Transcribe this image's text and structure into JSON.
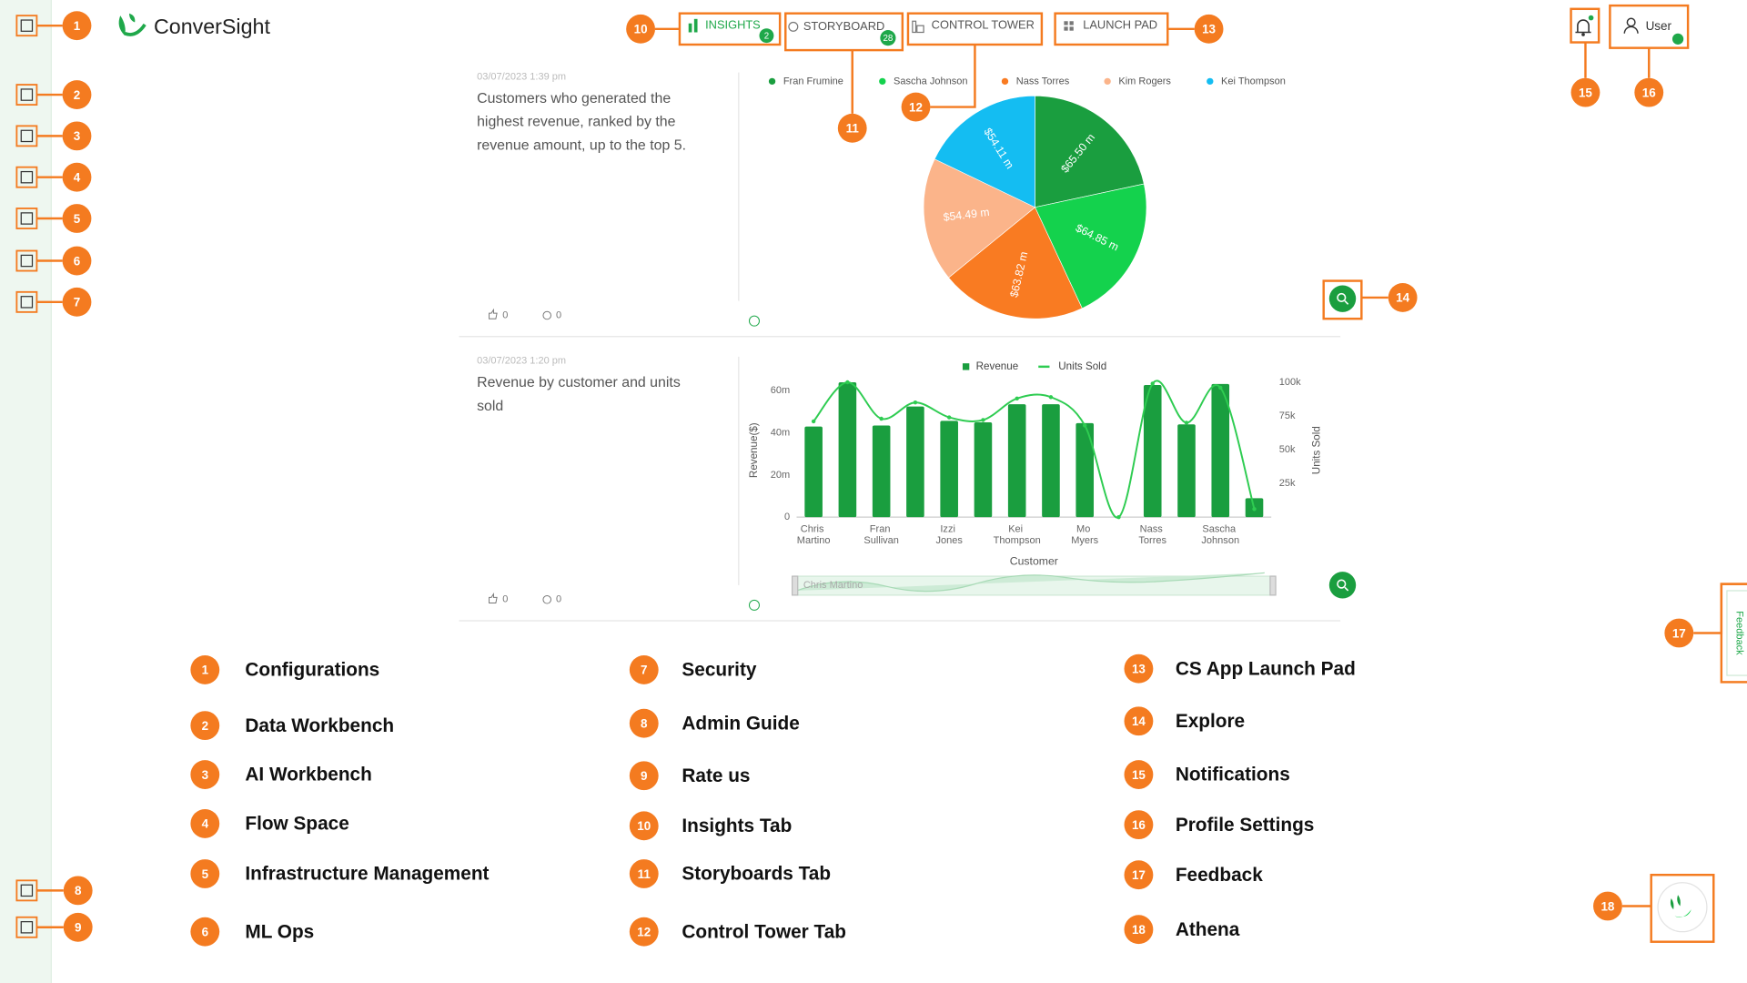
{
  "header": {
    "logo": "ConverSight",
    "tabs": [
      {
        "label": "INSIGHTS",
        "badge": 2
      },
      {
        "label": "STORYBOARD",
        "badge": 28
      },
      {
        "label": "CONTROL TOWER"
      },
      {
        "label": "LAUNCH PAD"
      }
    ],
    "user": "User"
  },
  "feedback": "Feedback",
  "cards": [
    {
      "timestamp": "03/07/2023 1:39 pm",
      "text": "Customers who generated the highest revenue, ranked by the revenue amount, up to the top 5.",
      "likes": 0,
      "comments": 0
    },
    {
      "timestamp": "03/07/2023 1:20 pm",
      "text": "Revenue by customer and units sold",
      "likes": 0,
      "comments": 0
    }
  ],
  "chart_data": [
    {
      "type": "pie",
      "categories": [
        "Fran Frumine",
        "Sascha Johnson",
        "Nass Torres",
        "Kim Rogers",
        "Kei Thompson"
      ],
      "values": [
        65.5,
        64.85,
        63.82,
        54.49,
        54.11
      ],
      "value_labels": [
        "$65.50 m",
        "$64.85 m",
        "$63.82 m",
        "$54.49 m",
        "$54.11 m"
      ],
      "colors": [
        "#1a9e3f",
        "#14d24d",
        "#f97b22",
        "#fbb48a",
        "#14bdf2"
      ]
    },
    {
      "type": "combo",
      "x_label": "Customer",
      "y_label": "Revenue($)",
      "y2_label": "Units Sold",
      "categories": [
        "Chris Martino",
        null,
        "Fran Sullivan",
        null,
        "Izzi Jones",
        null,
        "Kei Thompson",
        null,
        "Mo Myers",
        null,
        "Nass Torres",
        null,
        "Sascha Johnson",
        null
      ],
      "series": [
        {
          "name": "Revenue",
          "type": "bar",
          "color": "#1a9e3f",
          "values": [
            43,
            64,
            43.5,
            52.5,
            45.7,
            45,
            53.6,
            53.6,
            44.6,
            0,
            62.7,
            44,
            63.2,
            9
          ]
        },
        {
          "name": "Units Sold",
          "type": "line",
          "axis": "y2",
          "color": "#2ecc51",
          "values": [
            71000,
            100000,
            73000,
            85000,
            74000,
            72000,
            88000,
            89000,
            68000,
            0,
            99000,
            70000,
            96000,
            6000
          ]
        }
      ],
      "ylim": [
        0,
        64
      ],
      "yticks": [
        0,
        {
          "value": 20,
          "label": "20m"
        },
        {
          "value": 40,
          "label": "40m"
        },
        {
          "value": 60,
          "label": "60m"
        }
      ],
      "y2lim": [
        0,
        100000
      ],
      "y2ticks": [
        {
          "value": 25000,
          "label": "25k"
        },
        {
          "value": 50000,
          "label": "50k"
        },
        {
          "value": 75000,
          "label": "75k"
        },
        {
          "value": 100000,
          "label": "100k"
        }
      ]
    }
  ],
  "callouts": [
    {
      "number": 1,
      "label": "Configurations"
    },
    {
      "number": 2,
      "label": "Data Workbench"
    },
    {
      "number": 3,
      "label": "AI Workbench"
    },
    {
      "number": 4,
      "label": "Flow Space"
    },
    {
      "number": 5,
      "label": "Infrastructure Management"
    },
    {
      "number": 6,
      "label": "ML Ops"
    },
    {
      "number": 7,
      "label": "Security"
    },
    {
      "number": 8,
      "label": "Admin Guide"
    },
    {
      "number": 9,
      "label": "Rate us"
    },
    {
      "number": 10,
      "label": "Insights Tab"
    },
    {
      "number": 11,
      "label": "Storyboards Tab"
    },
    {
      "number": 12,
      "label": "Control Tower Tab"
    },
    {
      "number": 13,
      "label": "CS App Launch Pad"
    },
    {
      "number": 14,
      "label": "Explore"
    },
    {
      "number": 15,
      "label": "Notifications"
    },
    {
      "number": 16,
      "label": "Profile Settings"
    },
    {
      "number": 17,
      "label": "Feedback"
    },
    {
      "number": 18,
      "label": "Athena"
    }
  ]
}
